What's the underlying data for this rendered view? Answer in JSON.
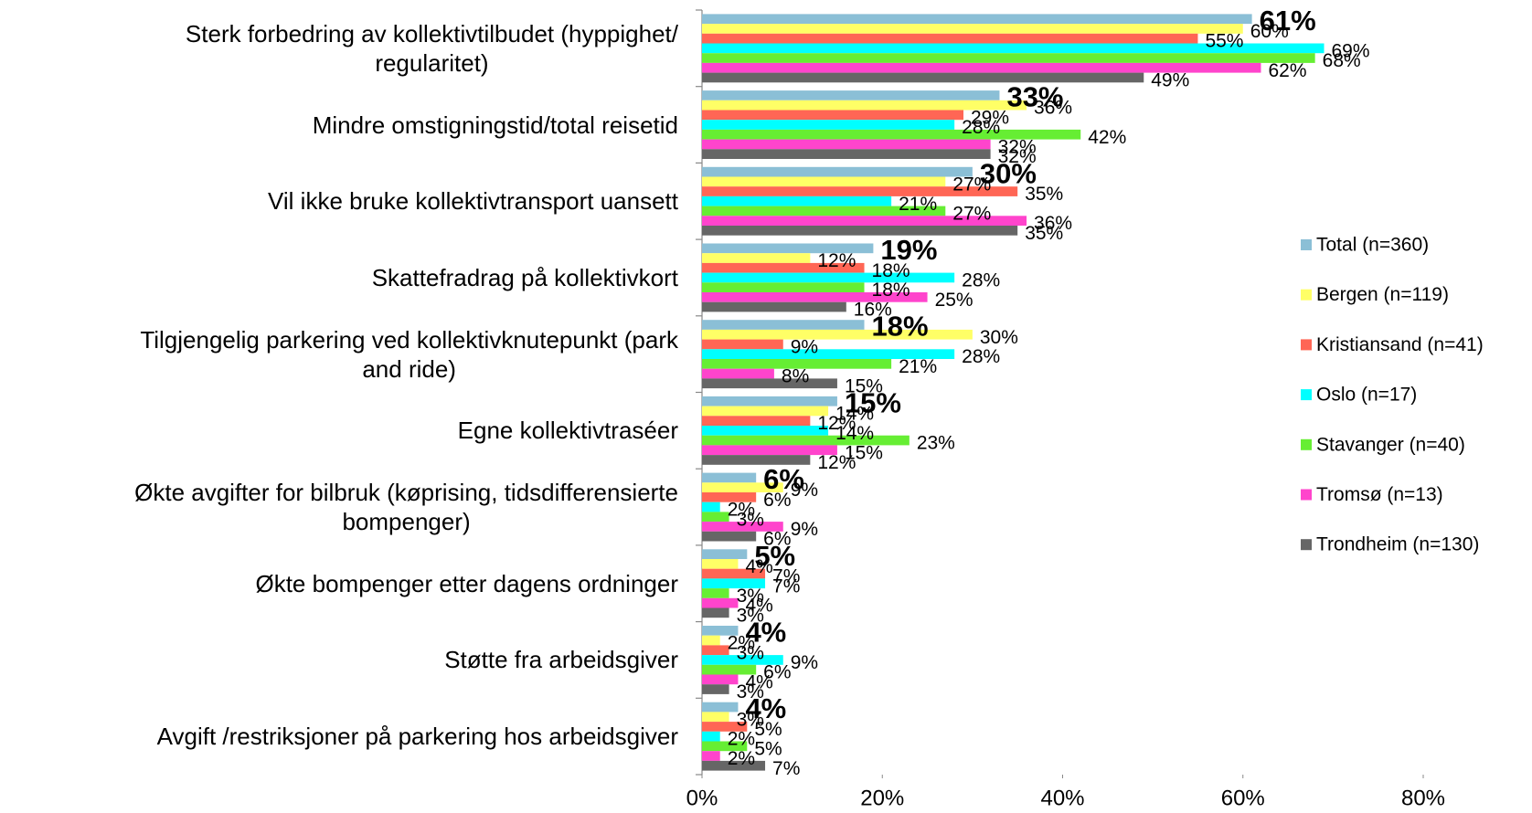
{
  "chart_data": {
    "type": "hbar",
    "categories": [
      "Sterk forbedring av kollektivtilbudet (hyppighet/\nregularitet)",
      "Mindre omstigningstid/total reisetid",
      "Vil ikke bruke kollektivtransport uansett",
      "Skattefradrag på kollektivkort",
      "Tilgjengelig parkering ved kollektivknutepunkt (park\nand ride)",
      "Egne kollektivtraséer",
      "Økte avgifter for bilbruk (køprising, tidsdifferensierte\nbompenger)",
      "Økte bompenger etter dagens ordninger",
      "Støtte fra arbeidsgiver",
      "Avgift /restriksjoner på parkering hos arbeidsgiver"
    ],
    "series": [
      {
        "name": "Total (n=360)",
        "color": "#8bbfd6",
        "values": [
          61,
          33,
          30,
          19,
          18,
          15,
          6,
          5,
          4,
          4
        ],
        "value_labels": [
          "61%",
          "33%",
          "30%",
          "19%",
          "18%",
          "15%",
          "6%",
          "5%",
          "4%",
          "4%"
        ]
      },
      {
        "name": "Bergen (n=119)",
        "color": "#ffff66",
        "values": [
          60,
          36,
          27,
          12,
          30,
          14,
          9,
          4,
          2,
          3
        ],
        "value_labels": [
          "60%",
          "36%",
          "27%",
          "12%",
          "30%",
          "14%",
          "9%",
          "4%",
          "2%",
          "3%"
        ]
      },
      {
        "name": "Kristiansand (n=41)",
        "color": "#ff6655",
        "values": [
          55,
          29,
          35,
          18,
          9,
          12,
          6,
          7,
          3,
          5
        ],
        "value_labels": [
          "55%",
          "29%",
          "35%",
          "18%",
          "9%",
          "12%",
          "6%",
          "7%",
          "3%",
          "5%"
        ]
      },
      {
        "name": "Oslo (n=17)",
        "color": "#00ffff",
        "values": [
          69,
          28,
          21,
          28,
          28,
          14,
          2,
          7,
          9,
          2
        ],
        "value_labels": [
          "69%",
          "28%",
          "21%",
          "28%",
          "28%",
          "14%",
          "2%",
          "7%",
          "9%",
          "2%"
        ]
      },
      {
        "name": "Stavanger (n=40)",
        "color": "#66ee33",
        "values": [
          68,
          42,
          27,
          18,
          21,
          23,
          3,
          3,
          6,
          5
        ],
        "value_labels": [
          "68%",
          "42%",
          "27%",
          "18%",
          "21%",
          "23%",
          "3%",
          "3%",
          "6%",
          "5%"
        ]
      },
      {
        "name": "Tromsø (n=13)",
        "color": "#ff44cc",
        "values": [
          62,
          32,
          36,
          25,
          8,
          15,
          9,
          4,
          4,
          2
        ],
        "value_labels": [
          "62%",
          "32%",
          "36%",
          "25%",
          "8%",
          "15%",
          "9%",
          "4%",
          "4%",
          "2%"
        ]
      },
      {
        "name": "Trondheim (n=130)",
        "color": "#666666",
        "values": [
          49,
          32,
          35,
          16,
          15,
          12,
          6,
          3,
          3,
          7
        ],
        "value_labels": [
          "49%",
          "32%",
          "35%",
          "16%",
          "15%",
          "12%",
          "6%",
          "3%",
          "3%",
          "7%"
        ]
      }
    ],
    "xlim": [
      0,
      80
    ],
    "xticks": [
      {
        "value": 0,
        "label": "0%"
      },
      {
        "value": 20,
        "label": "20%"
      },
      {
        "value": 40,
        "label": "40%"
      },
      {
        "value": 60,
        "label": "60%"
      },
      {
        "value": 80,
        "label": "80%"
      }
    ],
    "grid": false,
    "legend": "right"
  }
}
